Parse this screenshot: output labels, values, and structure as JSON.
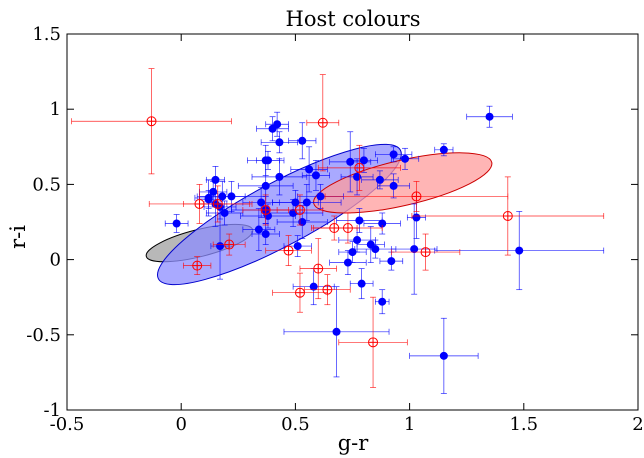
{
  "chart_data": {
    "type": "scatter",
    "title": "Host colours",
    "xlabel": "g-r",
    "ylabel": "r-i",
    "xlim": [
      -0.5,
      2
    ],
    "ylim": [
      -1,
      1.5
    ],
    "xticks": [
      -0.5,
      0,
      0.5,
      1,
      1.5,
      2
    ],
    "yticks": [
      -1,
      -0.5,
      0,
      0.5,
      1,
      1.5
    ],
    "xtick_labels": [
      "-0.5",
      "0",
      "0.5",
      "1",
      "1.5",
      "2"
    ],
    "ytick_labels": [
      "-1",
      "-0.5",
      "0",
      "0.5",
      "1",
      "1.5"
    ],
    "grid": false,
    "regions": [
      {
        "fill": "#a0a0a0",
        "stroke": "#000000",
        "cx": 0.08,
        "cy": 0.11,
        "rx": 0.24,
        "ry": 0.09,
        "angle_deg": 14
      },
      {
        "fill": "#8c8cff",
        "stroke": "#0000cc",
        "cx": 0.43,
        "cy": 0.3,
        "rx": 0.6,
        "ry": 0.21,
        "angle_deg": 28
      },
      {
        "fill": "#ff9c9c",
        "stroke": "#cc0000",
        "cx": 0.97,
        "cy": 0.51,
        "rx": 0.4,
        "ry": 0.15,
        "angle_deg": 13
      }
    ],
    "series": [
      {
        "color": "#0000ff",
        "marker": "filled-circle",
        "points": [
          [
            1.35,
            0.95,
            0.1,
            0.07
          ],
          [
            1.15,
            0.73,
            0.04,
            0.04
          ],
          [
            0.42,
            0.9,
            0.05,
            0.08
          ],
          [
            0.4,
            0.87,
            0.07,
            0.08
          ],
          [
            0.43,
            0.78,
            0.08,
            0.07
          ],
          [
            0.53,
            0.79,
            0.06,
            0.12
          ],
          [
            0.37,
            0.66,
            0.08,
            0.1
          ],
          [
            0.38,
            0.66,
            0.05,
            0.06
          ],
          [
            0.74,
            0.65,
            0.09,
            0.2
          ],
          [
            0.8,
            0.66,
            0.06,
            0.08
          ],
          [
            0.93,
            0.7,
            0.08,
            0.05
          ],
          [
            0.98,
            0.67,
            0.06,
            0.07
          ],
          [
            0.56,
            0.6,
            0.08,
            0.15
          ],
          [
            0.59,
            0.56,
            0.06,
            0.1
          ],
          [
            0.43,
            0.55,
            0.12,
            0.12
          ],
          [
            0.77,
            0.55,
            0.07,
            0.12
          ],
          [
            0.87,
            0.53,
            0.08,
            0.06
          ],
          [
            0.93,
            0.49,
            0.07,
            0.08
          ],
          [
            0.15,
            0.53,
            0.04,
            0.09
          ],
          [
            0.37,
            0.49,
            0.12,
            0.15
          ],
          [
            0.14,
            0.45,
            0.06,
            0.07
          ],
          [
            0.12,
            0.41,
            0.06,
            0.12
          ],
          [
            0.18,
            0.42,
            0.1,
            0.1
          ],
          [
            0.22,
            0.42,
            0.15,
            0.1
          ],
          [
            0.15,
            0.37,
            0.05,
            0.15
          ],
          [
            0.17,
            0.35,
            0.07,
            0.08
          ],
          [
            0.19,
            0.31,
            0.08,
            0.08
          ],
          [
            0.12,
            0.4,
            0.04,
            0.06
          ],
          [
            0.35,
            0.38,
            0.08,
            0.1
          ],
          [
            0.5,
            0.38,
            0.1,
            0.08
          ],
          [
            0.61,
            0.42,
            0.1,
            0.08
          ],
          [
            0.55,
            0.38,
            0.15,
            0.12
          ],
          [
            0.37,
            0.33,
            0.15,
            0.09
          ],
          [
            0.49,
            0.31,
            0.13,
            0.09
          ],
          [
            0.38,
            0.29,
            0.12,
            0.08
          ],
          [
            0.53,
            0.25,
            0.11,
            0.11
          ],
          [
            0.34,
            0.2,
            0.07,
            0.14
          ],
          [
            0.37,
            0.17,
            0.06,
            0.07
          ],
          [
            -0.02,
            0.24,
            0.05,
            0.06
          ],
          [
            0.17,
            0.09,
            0.04,
            0.22
          ],
          [
            0.51,
            0.09,
            0.06,
            0.07
          ],
          [
            0.77,
            0.13,
            0.08,
            0.08
          ],
          [
            0.88,
            0.24,
            0.08,
            0.07
          ],
          [
            1.03,
            0.28,
            0.04,
            0.14
          ],
          [
            0.78,
            0.26,
            0.1,
            0.08
          ],
          [
            0.83,
            0.1,
            0.06,
            0.12
          ],
          [
            1.02,
            0.07,
            0.1,
            0.3
          ],
          [
            0.85,
            0.07,
            0.09,
            0.06
          ],
          [
            0.75,
            0.05,
            0.06,
            0.07
          ],
          [
            0.92,
            -0.01,
            0.05,
            0.06
          ],
          [
            0.73,
            -0.02,
            0.08,
            0.08
          ],
          [
            0.79,
            -0.16,
            0.05,
            0.1
          ],
          [
            0.58,
            -0.18,
            0.09,
            0.12
          ],
          [
            0.88,
            -0.28,
            0.03,
            0.08
          ],
          [
            0.68,
            -0.48,
            0.23,
            0.3
          ],
          [
            1.15,
            -0.64,
            0.15,
            0.25
          ],
          [
            1.48,
            0.06,
            0.37,
            0.26
          ]
        ]
      },
      {
        "color": "#ff0000",
        "marker": "open-circle-cross",
        "points": [
          [
            -0.13,
            0.92,
            0.35,
            0.35
          ],
          [
            0.62,
            0.91,
            0.07,
            0.32
          ],
          [
            0.78,
            0.61,
            0.18,
            0.15
          ],
          [
            0.16,
            0.37,
            0.15,
            0.12
          ],
          [
            0.08,
            0.37,
            0.22,
            0.13
          ],
          [
            0.37,
            0.33,
            0.1,
            0.1
          ],
          [
            0.52,
            0.33,
            0.1,
            0.1
          ],
          [
            0.67,
            0.21,
            0.1,
            0.08
          ],
          [
            0.73,
            0.21,
            0.15,
            0.1
          ],
          [
            1.03,
            0.42,
            0.4,
            0.1
          ],
          [
            1.43,
            0.29,
            0.42,
            0.26
          ],
          [
            0.21,
            0.1,
            0.07,
            0.07
          ],
          [
            0.07,
            -0.04,
            0.06,
            0.06
          ],
          [
            0.47,
            0.06,
            0.1,
            0.1
          ],
          [
            0.6,
            -0.06,
            0.08,
            0.2
          ],
          [
            1.07,
            0.05,
            0.15,
            0.12
          ],
          [
            0.52,
            -0.22,
            0.12,
            0.13
          ],
          [
            0.64,
            -0.2,
            0.1,
            0.1
          ],
          [
            0.84,
            -0.55,
            0.15,
            0.3
          ]
        ]
      }
    ]
  }
}
